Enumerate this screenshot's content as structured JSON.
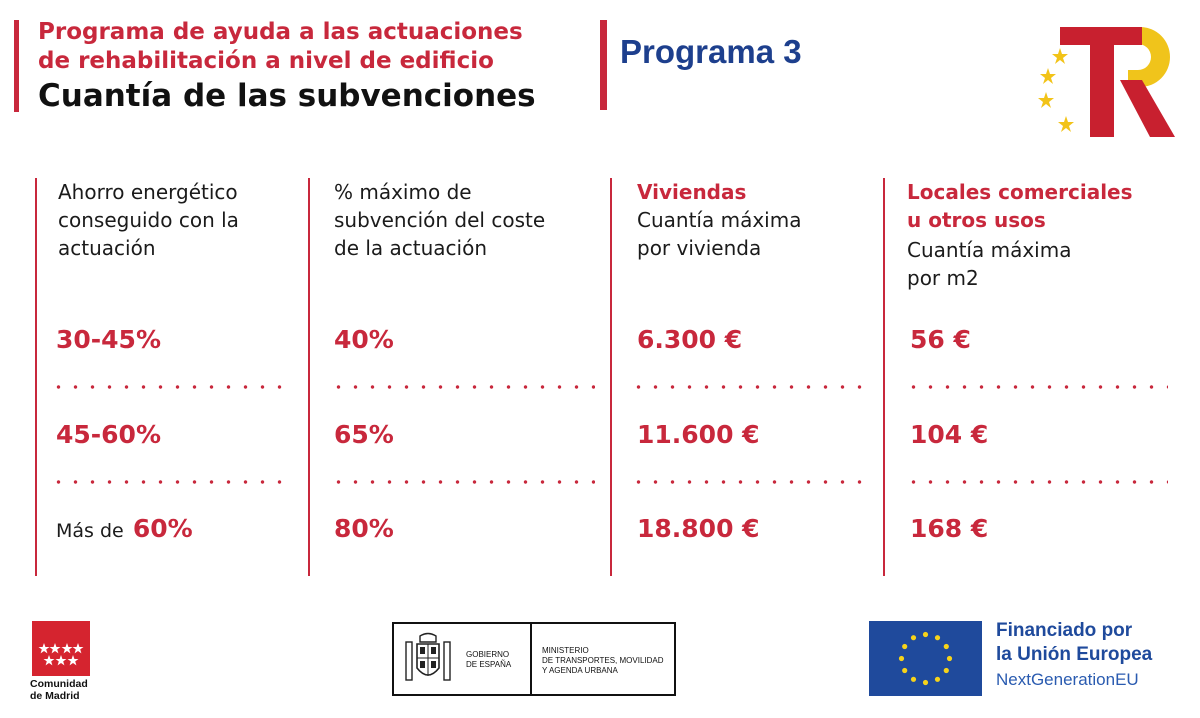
{
  "header": {
    "subtitle_line1": "Programa de ayuda a las actuaciones",
    "subtitle_line2": "de rehabilitación a nivel de edificio",
    "title": "Cuantía de las subvenciones",
    "program": "Programa 3"
  },
  "columns": [
    {
      "heading_lines": [
        "Ahorro energético",
        "conseguido con la",
        "actuación"
      ]
    },
    {
      "heading_lines": [
        "% máximo de",
        "subvención del coste",
        "de la actuación"
      ]
    },
    {
      "heading_red_lines": [
        "Viviendas"
      ],
      "heading_lines": [
        "Cuantía máxima",
        "por vivienda"
      ]
    },
    {
      "heading_red_lines": [
        "Locales comerciales",
        "u otros usos"
      ],
      "heading_lines": [
        "Cuantía máxima",
        "por m2"
      ]
    }
  ],
  "rows": [
    {
      "savings": "30-45%",
      "max_percent": "40%",
      "housing": "6.300 €",
      "commercial": "56 €"
    },
    {
      "savings": "45-60%",
      "max_percent": "65%",
      "housing": "11.600 €",
      "commercial": "104 €"
    },
    {
      "savings_prefix": "Más de",
      "savings": "60%",
      "max_percent": "80%",
      "housing": "18.800 €",
      "commercial": "168 €"
    }
  ],
  "footer": {
    "madrid_line1": "Comunidad",
    "madrid_line2": "de Madrid",
    "gov_line1": "GOBIERNO",
    "gov_line2": "DE ESPAÑA",
    "ministry_line1": "MINISTERIO",
    "ministry_line2": "DE TRANSPORTES, MOVILIDAD",
    "ministry_line3": "Y AGENDA URBANA",
    "eu_line1": "Financiado por",
    "eu_line2": "la Unión Europea",
    "eu_line3": "NextGenerationEU"
  },
  "colors": {
    "accent_red": "#c8283c",
    "program_blue": "#1d3f8d",
    "eu_blue": "#1f4a9c",
    "eu_gold": "#f6d31a"
  },
  "icons": [
    "tr-logo-icon",
    "madrid-flag-icon",
    "spain-coat-of-arms-icon",
    "eu-flag-icon"
  ]
}
